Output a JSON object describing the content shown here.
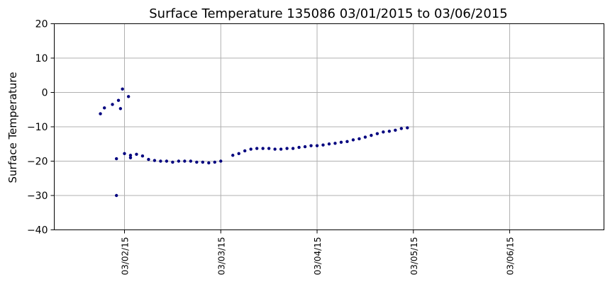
{
  "chart_data": {
    "type": "scatter",
    "title": "Surface Temperature 135086  03/01/2015 to 03/06/2015",
    "xlabel": "",
    "ylabel": "Surface Temperature",
    "ylim": [
      -40,
      20
    ],
    "yticks": [
      -40,
      -30,
      -20,
      -10,
      0,
      10,
      20
    ],
    "xlim": [
      "2015-03-01 06:30",
      "2015-03-06 23:30"
    ],
    "xticks": [
      "2015-03-02",
      "2015-03-03",
      "2015-03-04",
      "2015-03-05",
      "2015-03-06"
    ],
    "xtick_labels": [
      "03/02/15",
      "03/03/15",
      "03/04/15",
      "03/05/15",
      "03/06/15"
    ],
    "grid": true,
    "marker_color": "#00007f",
    "series": [
      {
        "points": [
          [
            "2015-03-01 18:00",
            -6.2
          ],
          [
            "2015-03-01 19:00",
            -4.5
          ],
          [
            "2015-03-01 21:00",
            -3.5
          ],
          [
            "2015-03-01 22:00",
            -19.3
          ],
          [
            "2015-03-01 22:00",
            -30.0
          ],
          [
            "2015-03-01 22:30",
            -2.3
          ],
          [
            "2015-03-01 23:00",
            -4.7
          ],
          [
            "2015-03-01 23:30",
            1.0
          ],
          [
            "2015-03-02 01:00",
            -1.2
          ],
          [
            "2015-03-02 00:00",
            -17.8
          ],
          [
            "2015-03-02 01:30",
            -18.3
          ],
          [
            "2015-03-02 03:00",
            -18.0
          ],
          [
            "2015-03-02 04:30",
            -18.5
          ],
          [
            "2015-03-02 06:00",
            -19.5
          ],
          [
            "2015-03-02 07:30",
            -19.8
          ],
          [
            "2015-03-02 09:00",
            -20.0
          ],
          [
            "2015-03-02 10:30",
            -20.0
          ],
          [
            "2015-03-02 12:00",
            -20.3
          ],
          [
            "2015-03-02 13:30",
            -20.0
          ],
          [
            "2015-03-02 15:00",
            -20.0
          ],
          [
            "2015-03-02 16:30",
            -20.0
          ],
          [
            "2015-03-02 18:00",
            -20.3
          ],
          [
            "2015-03-02 19:30",
            -20.3
          ],
          [
            "2015-03-02 21:00",
            -20.5
          ],
          [
            "2015-03-02 22:30",
            -20.3
          ],
          [
            "2015-03-03 00:00",
            -20.0
          ],
          [
            "2015-03-02 01:30",
            -19.0
          ],
          [
            "2015-03-03 03:00",
            -18.3
          ],
          [
            "2015-03-03 04:30",
            -17.8
          ],
          [
            "2015-03-03 06:00",
            -17.0
          ],
          [
            "2015-03-03 07:30",
            -16.5
          ],
          [
            "2015-03-03 09:00",
            -16.3
          ],
          [
            "2015-03-03 10:30",
            -16.3
          ],
          [
            "2015-03-03 12:00",
            -16.3
          ],
          [
            "2015-03-03 13:30",
            -16.5
          ],
          [
            "2015-03-03 15:00",
            -16.5
          ],
          [
            "2015-03-03 16:30",
            -16.3
          ],
          [
            "2015-03-03 18:00",
            -16.3
          ],
          [
            "2015-03-03 19:30",
            -16.0
          ],
          [
            "2015-03-03 21:00",
            -15.8
          ],
          [
            "2015-03-03 22:30",
            -15.5
          ],
          [
            "2015-03-04 00:00",
            -15.5
          ],
          [
            "2015-03-04 01:30",
            -15.3
          ],
          [
            "2015-03-04 03:00",
            -15.0
          ],
          [
            "2015-03-04 04:30",
            -14.8
          ],
          [
            "2015-03-04 06:00",
            -14.5
          ],
          [
            "2015-03-04 07:30",
            -14.3
          ],
          [
            "2015-03-04 09:00",
            -13.8
          ],
          [
            "2015-03-04 10:30",
            -13.5
          ],
          [
            "2015-03-04 12:00",
            -13.0
          ],
          [
            "2015-03-04 13:30",
            -12.5
          ],
          [
            "2015-03-04 15:00",
            -12.0
          ],
          [
            "2015-03-04 16:30",
            -11.5
          ],
          [
            "2015-03-04 18:00",
            -11.3
          ],
          [
            "2015-03-04 19:30",
            -11.0
          ],
          [
            "2015-03-04 21:00",
            -10.5
          ],
          [
            "2015-03-04 22:30",
            -10.3
          ]
        ]
      }
    ]
  }
}
